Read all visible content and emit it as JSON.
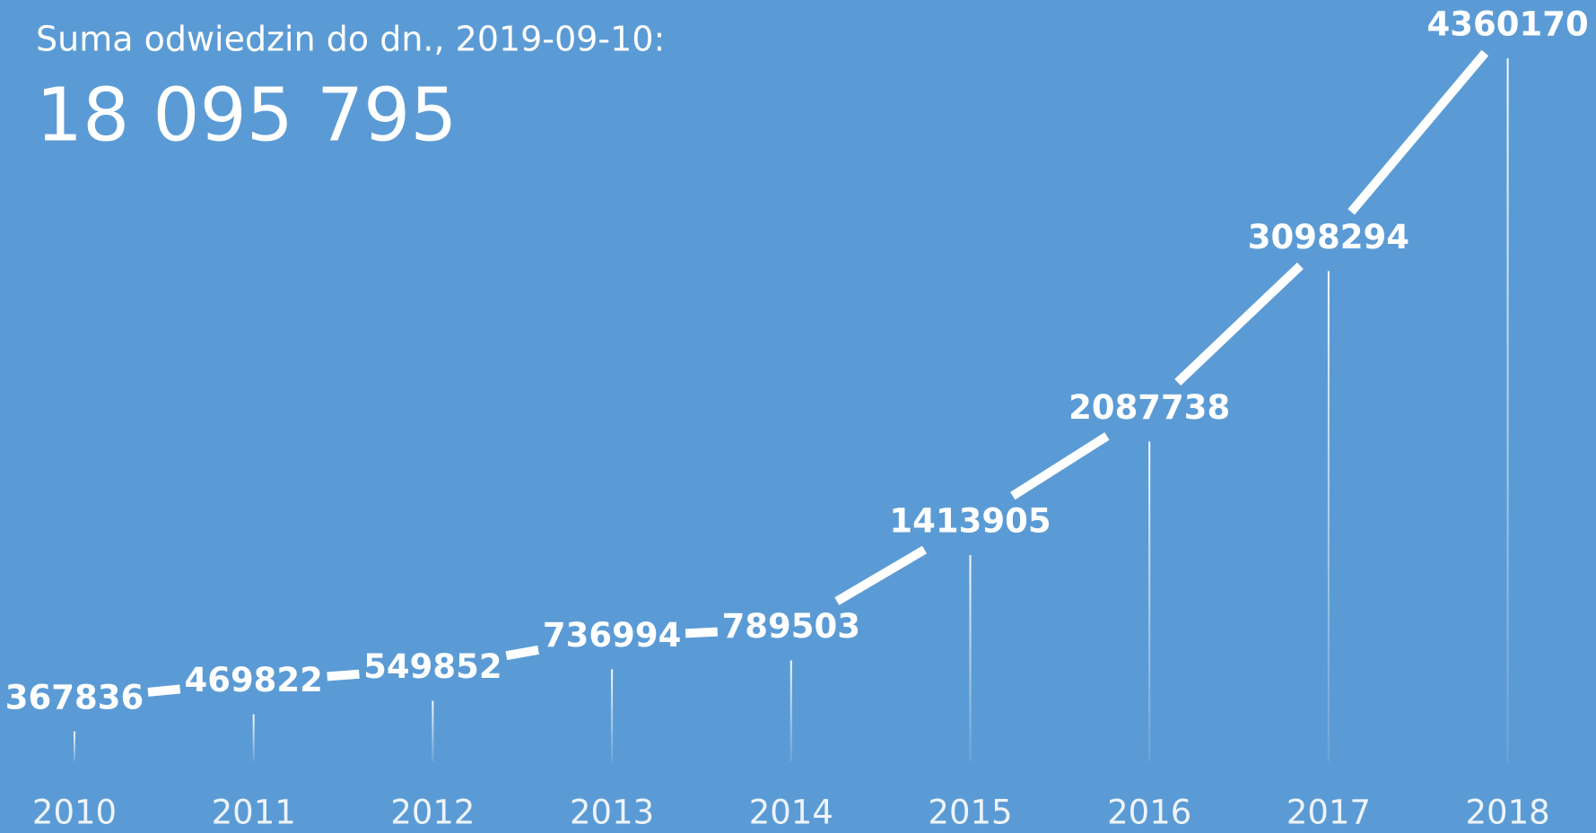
{
  "chart_data": {
    "type": "line",
    "title": "Suma odwiedzin do dn., 2019-09-10:",
    "headline": {
      "value": 18095795,
      "label": "18 095 795"
    },
    "categories": [
      "2010",
      "2011",
      "2012",
      "2013",
      "2014",
      "2015",
      "2016",
      "2017",
      "2018"
    ],
    "values": [
      367836,
      469822,
      549852,
      736994,
      789503,
      1413905,
      2087738,
      3098294,
      4360170
    ],
    "color": "#ffffff"
  }
}
